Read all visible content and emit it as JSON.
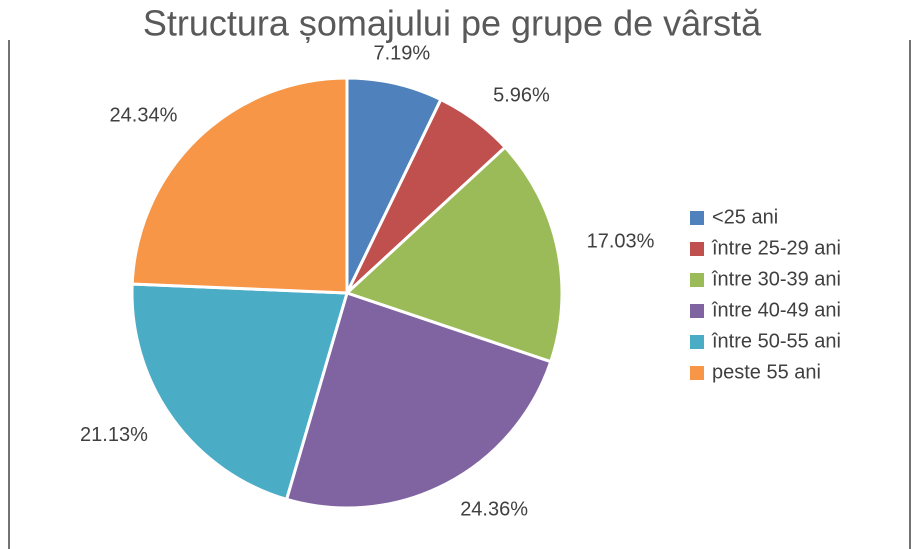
{
  "chart_data": {
    "type": "pie",
    "title": "Structura șomajului pe grupe de vârstă",
    "categories": [
      "<25 ani",
      "între 25-29 ani",
      "între 30-39 ani",
      "între 40-49 ani",
      "între 50-55 ani",
      "peste 55 ani"
    ],
    "values": [
      7.19,
      5.96,
      17.03,
      24.36,
      21.13,
      24.34
    ],
    "value_labels": [
      "7.19%",
      "5.96%",
      "17.03%",
      "24.36%",
      "21.13%",
      "24.34%"
    ],
    "colors": [
      "#4f81bd",
      "#c0504d",
      "#9bbb59",
      "#8064a2",
      "#4bacc6",
      "#f79646"
    ],
    "legend": "right"
  }
}
